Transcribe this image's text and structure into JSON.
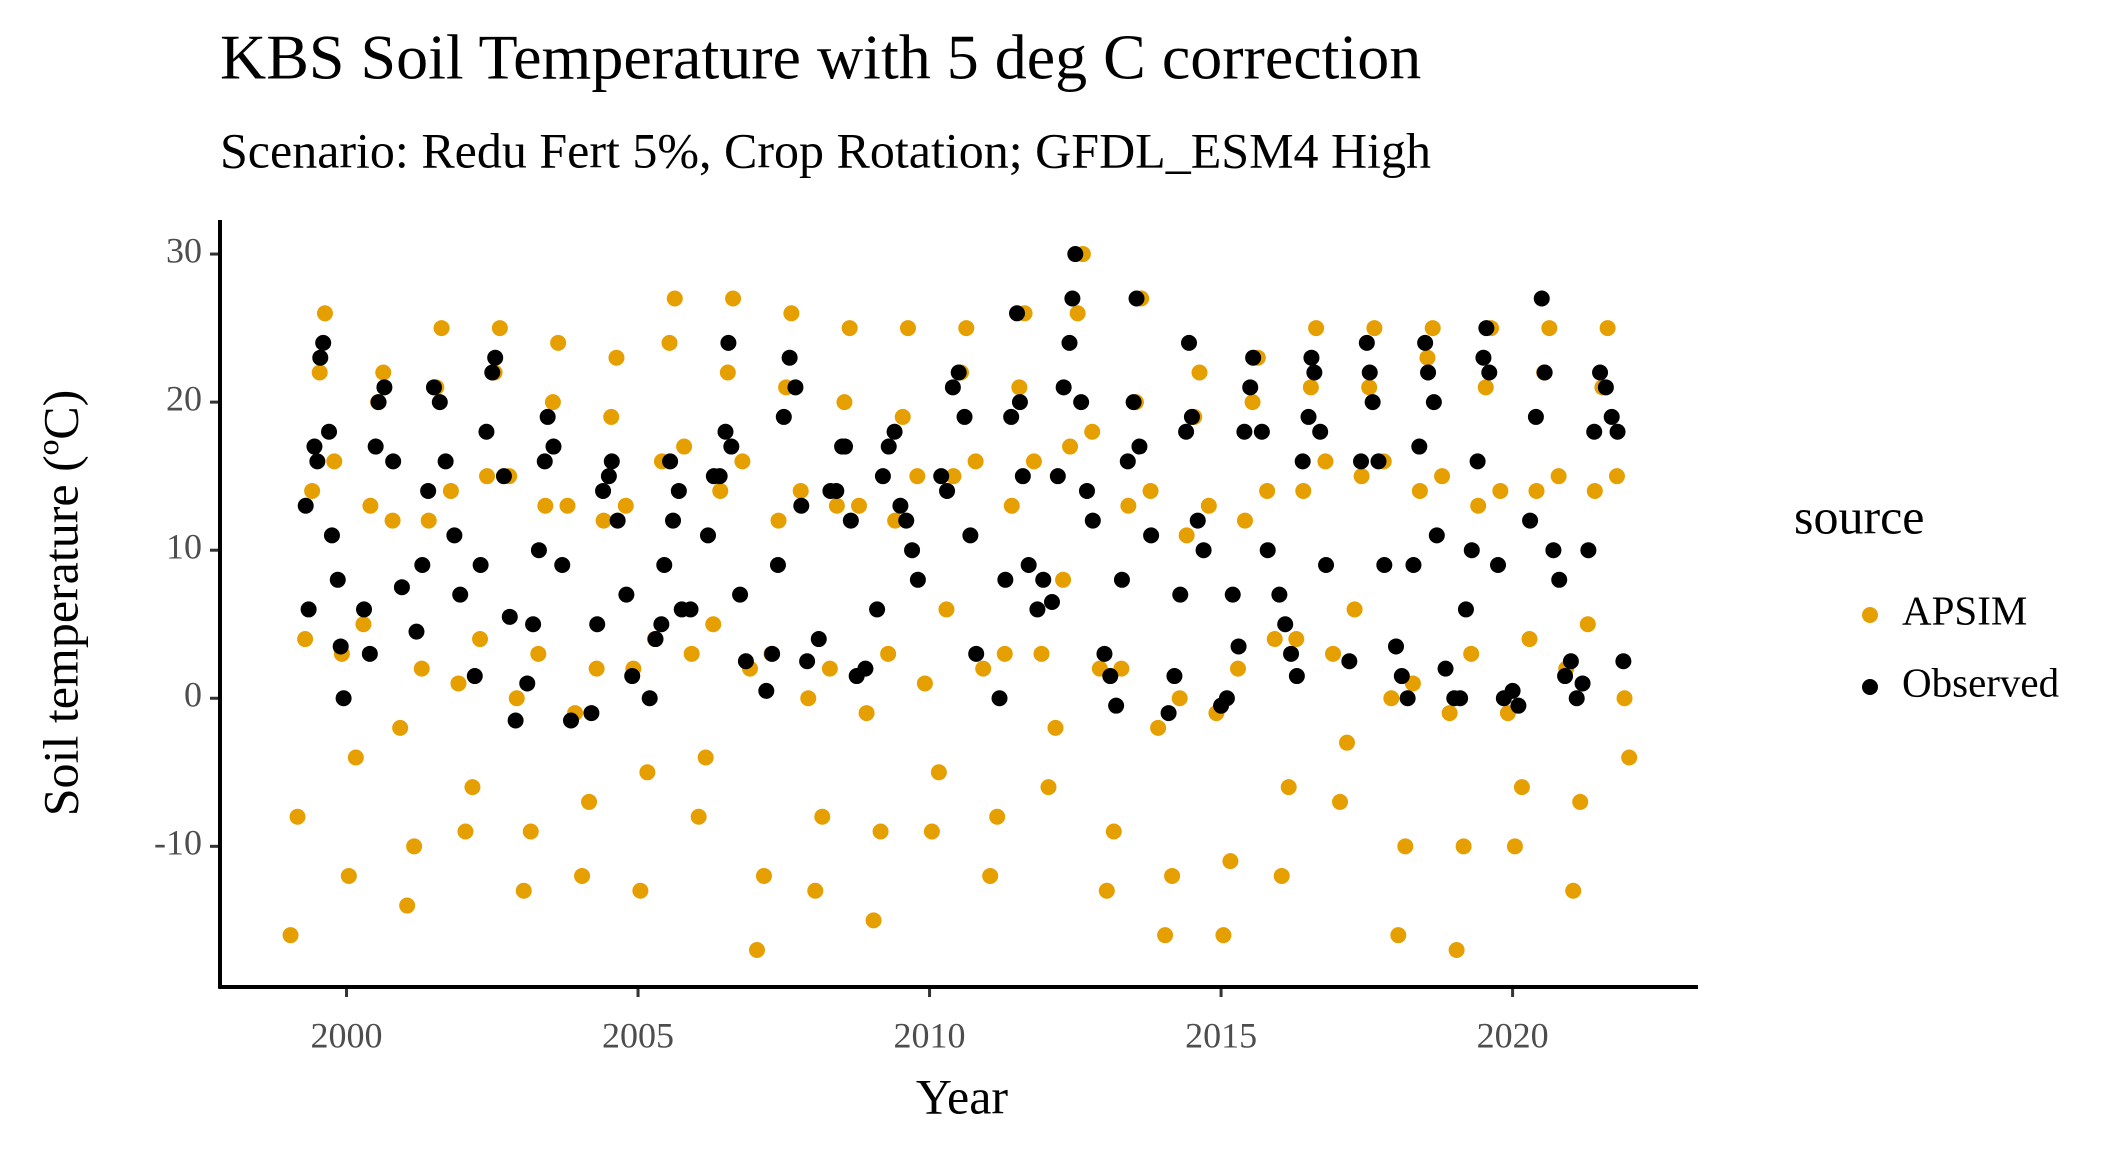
{
  "chart_data": {
    "type": "scatter",
    "title": "KBS Soil Temperature with 5 deg C correction",
    "subtitle": "Scenario: Redu Fert 5%, Crop Rotation; GFDL_ESM4 High",
    "x_label": "Year",
    "y_label": "Soil temperature (ºC)",
    "legend_title": "source",
    "xlim": [
      1997.83,
      2023.18
    ],
    "ylim": [
      -19.5,
      32.3
    ],
    "xticks": [
      2000,
      2005,
      2010,
      2015,
      2020
    ],
    "yticks": [
      -10,
      0,
      10,
      20,
      30
    ],
    "grid": false,
    "series": [
      {
        "name": "APSIM",
        "color": "#E69F00",
        "x": [
          1999.04,
          1999.16,
          1999.29,
          1999.41,
          1999.54,
          1999.63,
          1999.79,
          1999.92,
          2000.04,
          2000.16,
          2000.29,
          2000.41,
          2000.54,
          2000.63,
          2000.79,
          2000.92,
          2001.04,
          2001.16,
          2001.29,
          2001.41,
          2001.54,
          2001.63,
          2001.79,
          2001.92,
          2002.04,
          2002.16,
          2002.29,
          2002.41,
          2002.54,
          2002.63,
          2002.79,
          2002.92,
          2003.04,
          2003.16,
          2003.29,
          2003.41,
          2003.54,
          2003.63,
          2003.79,
          2003.92,
          2004.04,
          2004.16,
          2004.29,
          2004.41,
          2004.54,
          2004.63,
          2004.79,
          2004.92,
          2005.04,
          2005.16,
          2005.29,
          2005.41,
          2005.54,
          2005.63,
          2005.79,
          2005.92,
          2006.04,
          2006.16,
          2006.29,
          2006.41,
          2006.54,
          2006.63,
          2006.79,
          2006.92,
          2007.04,
          2007.16,
          2007.29,
          2007.41,
          2007.54,
          2007.63,
          2007.79,
          2007.92,
          2008.04,
          2008.16,
          2008.29,
          2008.41,
          2008.54,
          2008.63,
          2008.79,
          2008.92,
          2009.04,
          2009.16,
          2009.29,
          2009.41,
          2009.54,
          2009.63,
          2009.79,
          2009.92,
          2010.04,
          2010.16,
          2010.29,
          2010.41,
          2010.54,
          2010.63,
          2010.79,
          2010.92,
          2011.04,
          2011.16,
          2011.29,
          2011.41,
          2011.54,
          2011.63,
          2011.79,
          2011.92,
          2012.04,
          2012.16,
          2012.29,
          2012.41,
          2012.54,
          2012.63,
          2012.79,
          2012.92,
          2013.04,
          2013.16,
          2013.29,
          2013.41,
          2013.54,
          2013.63,
          2013.79,
          2013.92,
          2014.04,
          2014.16,
          2014.29,
          2014.41,
          2014.54,
          2014.63,
          2014.79,
          2014.92,
          2015.04,
          2015.16,
          2015.29,
          2015.41,
          2015.54,
          2015.63,
          2015.79,
          2015.92,
          2016.04,
          2016.16,
          2016.29,
          2016.41,
          2016.54,
          2016.63,
          2016.79,
          2016.92,
          2017.04,
          2017.16,
          2017.29,
          2017.41,
          2017.54,
          2017.63,
          2017.79,
          2017.92,
          2018.04,
          2018.16,
          2018.29,
          2018.41,
          2018.54,
          2018.63,
          2018.79,
          2018.92,
          2019.04,
          2019.16,
          2019.29,
          2019.41,
          2019.54,
          2019.63,
          2019.79,
          2019.92,
          2020.04,
          2020.16,
          2020.29,
          2020.41,
          2020.54,
          2020.63,
          2020.79,
          2020.92,
          2021.04,
          2021.16,
          2021.29,
          2021.41,
          2021.54,
          2021.63,
          2021.79,
          2021.92,
          2022.0
        ],
        "values": [
          -16,
          -8,
          4,
          14,
          22,
          26,
          16,
          3,
          -12,
          -4,
          5,
          13,
          20,
          22,
          12,
          -2,
          -14,
          -10,
          2,
          12,
          21,
          25,
          14,
          1,
          -9,
          -6,
          4,
          15,
          22,
          25,
          15,
          0,
          -13,
          -9,
          3,
          13,
          20,
          24,
          13,
          -1,
          -12,
          -7,
          2,
          12,
          19,
          23,
          13,
          2,
          -13,
          -5,
          4,
          16,
          24,
          27,
          17,
          3,
          -8,
          -4,
          5,
          14,
          22,
          27,
          16,
          2,
          -17,
          -12,
          3,
          12,
          21,
          26,
          14,
          0,
          -13,
          -8,
          2,
          13,
          20,
          25,
          13,
          -1,
          -15,
          -9,
          3,
          12,
          19,
          25,
          15,
          1,
          -9,
          -5,
          6,
          15,
          22,
          25,
          16,
          2,
          -12,
          -8,
          3,
          13,
          21,
          26,
          16,
          3,
          -6,
          -2,
          8,
          17,
          26,
          30,
          18,
          2,
          -13,
          -9,
          2,
          13,
          20,
          27,
          14,
          -2,
          -16,
          -12,
          0,
          11,
          19,
          22,
          13,
          -1,
          -16,
          -11,
          2,
          12,
          20,
          23,
          14,
          4,
          -12,
          -6,
          4,
          14,
          21,
          25,
          16,
          3,
          -7,
          -3,
          6,
          15,
          21,
          25,
          16,
          0,
          -16,
          -10,
          1,
          14,
          23,
          25,
          15,
          -1,
          -17,
          -10,
          3,
          13,
          21,
          25,
          14,
          -1,
          -10,
          -6,
          4,
          14,
          22,
          25,
          15,
          2,
          -13,
          -7,
          5,
          14,
          21,
          25,
          15,
          0,
          -4
        ]
      },
      {
        "name": "Observed",
        "color": "#000000",
        "x": [
          1999.3,
          1999.35,
          1999.45,
          1999.5,
          1999.55,
          1999.6,
          1999.7,
          1999.75,
          1999.85,
          1999.9,
          1999.95,
          2000.3,
          2000.4,
          2000.5,
          2000.55,
          2000.65,
          2000.8,
          2000.95,
          2001.2,
          2001.3,
          2001.4,
          2001.5,
          2001.6,
          2001.7,
          2001.85,
          2001.95,
          2002.2,
          2002.3,
          2002.4,
          2002.5,
          2002.55,
          2002.7,
          2002.8,
          2002.9,
          2003.1,
          2003.2,
          2003.3,
          2003.4,
          2003.45,
          2003.55,
          2003.7,
          2003.85,
          2004.2,
          2004.3,
          2004.4,
          2004.5,
          2004.55,
          2004.65,
          2004.8,
          2004.9,
          2005.2,
          2005.3,
          2005.4,
          2005.45,
          2005.55,
          2005.6,
          2005.7,
          2005.75,
          2005.9,
          2006.2,
          2006.3,
          2006.4,
          2006.5,
          2006.55,
          2006.6,
          2006.75,
          2006.85,
          2007.2,
          2007.3,
          2007.4,
          2007.5,
          2007.6,
          2007.7,
          2007.8,
          2007.9,
          2008.1,
          2008.3,
          2008.4,
          2008.5,
          2008.55,
          2008.65,
          2008.75,
          2008.9,
          2009.1,
          2009.2,
          2009.3,
          2009.4,
          2009.5,
          2009.6,
          2009.7,
          2009.8,
          2010.2,
          2010.3,
          2010.4,
          2010.5,
          2010.6,
          2010.7,
          2010.8,
          2011.2,
          2011.3,
          2011.4,
          2011.5,
          2011.55,
          2011.6,
          2011.7,
          2011.85,
          2011.95,
          2012.1,
          2012.2,
          2012.3,
          2012.4,
          2012.45,
          2012.5,
          2012.6,
          2012.7,
          2012.8,
          2013.0,
          2013.1,
          2013.2,
          2013.3,
          2013.4,
          2013.5,
          2013.55,
          2013.6,
          2013.8,
          2014.1,
          2014.2,
          2014.3,
          2014.4,
          2014.45,
          2014.5,
          2014.6,
          2014.7,
          2015.0,
          2015.1,
          2015.2,
          2015.3,
          2015.4,
          2015.5,
          2015.55,
          2015.7,
          2015.8,
          2016.0,
          2016.1,
          2016.2,
          2016.3,
          2016.4,
          2016.5,
          2016.55,
          2016.6,
          2016.7,
          2016.8,
          2017.2,
          2017.4,
          2017.5,
          2017.55,
          2017.6,
          2017.7,
          2017.8,
          2018.0,
          2018.1,
          2018.2,
          2018.3,
          2018.4,
          2018.5,
          2018.55,
          2018.65,
          2018.7,
          2018.85,
          2019.0,
          2019.1,
          2019.2,
          2019.3,
          2019.4,
          2019.5,
          2019.55,
          2019.6,
          2019.75,
          2019.85,
          2020.0,
          2020.1,
          2020.3,
          2020.4,
          2020.5,
          2020.55,
          2020.7,
          2020.8,
          2020.9,
          2021.0,
          2021.1,
          2021.2,
          2021.3,
          2021.4,
          2021.5,
          2021.6,
          2021.7,
          2021.8,
          2021.9
        ],
        "values": [
          13,
          6,
          17,
          16,
          23,
          24,
          18,
          11,
          8,
          3.5,
          0,
          6,
          3,
          17,
          20,
          21,
          16,
          7.5,
          4.5,
          9,
          14,
          21,
          20,
          16,
          11,
          7,
          1.5,
          9,
          18,
          22,
          23,
          15,
          5.5,
          -1.5,
          1,
          5,
          10,
          16,
          19,
          17,
          9,
          -1.5,
          -1,
          5,
          14,
          15,
          16,
          12,
          7,
          1.5,
          0,
          4,
          5,
          9,
          16,
          12,
          14,
          6,
          6,
          11,
          15,
          15,
          18,
          24,
          17,
          7,
          2.5,
          0.5,
          3,
          9,
          19,
          23,
          21,
          13,
          2.5,
          4,
          14,
          14,
          17,
          17,
          12,
          1.5,
          2,
          6,
          15,
          17,
          18,
          13,
          12,
          10,
          8,
          15,
          14,
          21,
          22,
          19,
          11,
          3,
          0,
          8,
          19,
          26,
          20,
          15,
          9,
          6,
          8,
          6.5,
          15,
          21,
          24,
          27,
          30,
          20,
          14,
          12,
          3,
          1.5,
          -0.5,
          8,
          16,
          20,
          27,
          17,
          11,
          -1,
          1.5,
          7,
          18,
          24,
          19,
          12,
          10,
          -0.5,
          0,
          7,
          3.5,
          18,
          21,
          23,
          18,
          10,
          7,
          5,
          3,
          1.5,
          16,
          19,
          23,
          22,
          18,
          9,
          2.5,
          16,
          24,
          22,
          20,
          16,
          9,
          3.5,
          1.5,
          0,
          9,
          17,
          24,
          22,
          20,
          11,
          2,
          0,
          0,
          6,
          10,
          16,
          23,
          25,
          22,
          9,
          0,
          0.5,
          -0.5,
          12,
          19,
          27,
          22,
          10,
          8,
          1.5,
          2.5,
          0,
          1,
          10,
          18,
          22,
          21,
          19,
          18,
          2.5
        ]
      }
    ]
  }
}
